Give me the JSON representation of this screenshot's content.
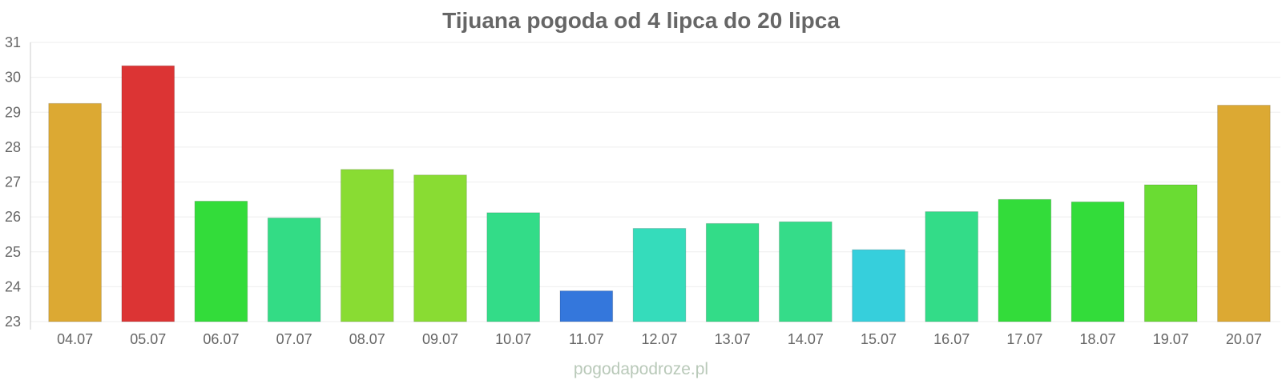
{
  "chart_data": {
    "type": "bar",
    "title": "Tijuana pogoda od 4 lipca do 20 lipca",
    "xlabel": "",
    "ylabel": "",
    "ylim": [
      23,
      31
    ],
    "yticks": [
      23,
      24,
      25,
      26,
      27,
      28,
      29,
      30,
      31
    ],
    "grid": true,
    "categories": [
      "04.07",
      "05.07",
      "06.07",
      "07.07",
      "08.07",
      "09.07",
      "10.07",
      "11.07",
      "12.07",
      "13.07",
      "14.07",
      "15.07",
      "16.07",
      "17.07",
      "18.07",
      "19.07",
      "20.07"
    ],
    "values": [
      29.25,
      30.33,
      26.45,
      25.97,
      27.36,
      27.2,
      26.12,
      23.88,
      25.67,
      25.81,
      25.86,
      25.06,
      26.15,
      26.5,
      26.43,
      26.92,
      29.2
    ],
    "colors": [
      "#dca933",
      "#dc3434",
      "#33dc3a",
      "#33dc85",
      "#89dc33",
      "#89dc33",
      "#33dc88",
      "#3477dc",
      "#35dcbb",
      "#33dc88",
      "#35dc89",
      "#36cfdc",
      "#33dc88",
      "#33dc3a",
      "#33dc3a",
      "#6adc33",
      "#dca933"
    ]
  },
  "watermark": "pogodapodroze.pl"
}
